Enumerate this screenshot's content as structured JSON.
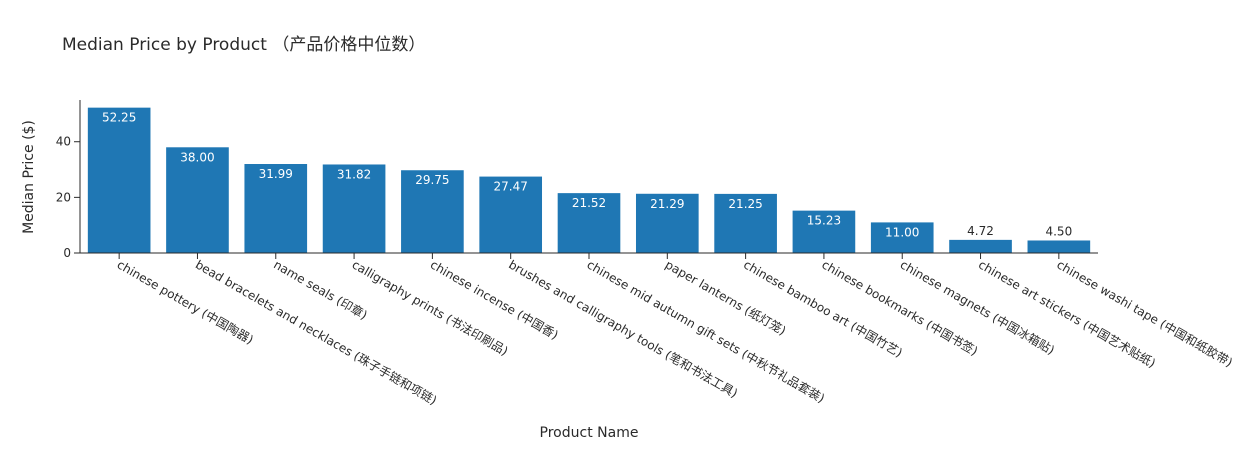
{
  "chart_data": {
    "type": "bar",
    "title": "Median Price by Product （产品价格中位数）",
    "xlabel": "Product Name",
    "ylabel": "Median Price ($)",
    "ylim": [
      0,
      55
    ],
    "yticks": [
      0,
      20,
      40
    ],
    "grid": false,
    "color": "#1f77b4",
    "categories": [
      "chinese pottery (中国陶器)",
      "bead bracelets and necklaces (珠子手链和项链)",
      "name seals (印章)",
      "calligraphy prints (书法印刷品)",
      "chinese incense (中国香)",
      "brushes and calligraphy tools (笔和书法工具)",
      "chinese mid autumn gift sets (中秋节礼品套装)",
      "paper lanterns (纸灯笼)",
      "chinese bamboo art (中国竹艺)",
      "chinese bookmarks (中国书签)",
      "chinese magnets (中国冰箱贴)",
      "chinese art stickers (中国艺术贴纸)",
      "chinese washi tape (中国和纸胶带)"
    ],
    "values": [
      52.25,
      38.0,
      31.99,
      31.82,
      29.75,
      27.47,
      21.52,
      21.29,
      21.25,
      15.23,
      11.0,
      4.72,
      4.5
    ],
    "value_labels": [
      "52.25",
      "38.00",
      "31.99",
      "31.82",
      "29.75",
      "27.47",
      "21.52",
      "21.29",
      "21.25",
      "15.23",
      "11.00",
      "4.72",
      "4.50"
    ]
  }
}
